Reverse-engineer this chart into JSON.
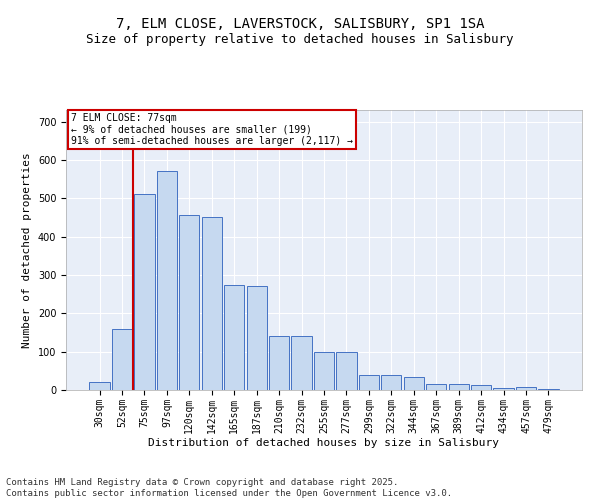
{
  "title": "7, ELM CLOSE, LAVERSTOCK, SALISBURY, SP1 1SA",
  "subtitle": "Size of property relative to detached houses in Salisbury",
  "xlabel": "Distribution of detached houses by size in Salisbury",
  "ylabel": "Number of detached properties",
  "footnote1": "Contains HM Land Registry data © Crown copyright and database right 2025.",
  "footnote2": "Contains public sector information licensed under the Open Government Licence v3.0.",
  "annotation_line1": "7 ELM CLOSE: 77sqm",
  "annotation_line2": "← 9% of detached houses are smaller (199)",
  "annotation_line3": "91% of semi-detached houses are larger (2,117) →",
  "bar_labels": [
    "30sqm",
    "52sqm",
    "75sqm",
    "97sqm",
    "120sqm",
    "142sqm",
    "165sqm",
    "187sqm",
    "210sqm",
    "232sqm",
    "255sqm",
    "277sqm",
    "299sqm",
    "322sqm",
    "344sqm",
    "367sqm",
    "389sqm",
    "412sqm",
    "434sqm",
    "457sqm",
    "479sqm"
  ],
  "bar_values": [
    20,
    158,
    510,
    570,
    455,
    450,
    275,
    270,
    140,
    140,
    100,
    100,
    40,
    40,
    35,
    15,
    15,
    12,
    5,
    7,
    3
  ],
  "bar_color": "#c6d9f0",
  "bar_edge_color": "#4472c4",
  "vline_x": 1.5,
  "vline_color": "#cc0000",
  "background_color": "#e8eef8",
  "ylim": [
    0,
    730
  ],
  "yticks": [
    0,
    100,
    200,
    300,
    400,
    500,
    600,
    700
  ],
  "annotation_box_color": "#cc0000",
  "title_fontsize": 10,
  "subtitle_fontsize": 9,
  "axis_fontsize": 8,
  "tick_fontsize": 7,
  "footnote_fontsize": 6.5
}
